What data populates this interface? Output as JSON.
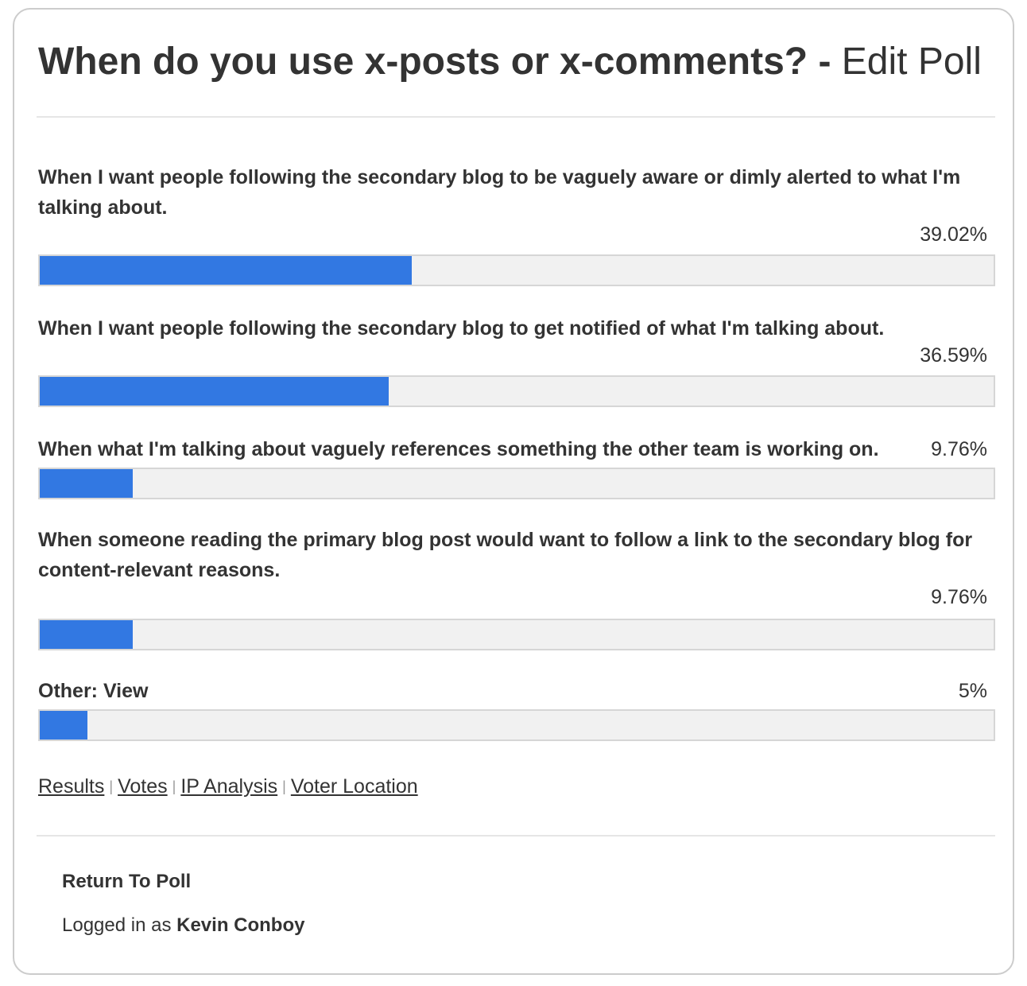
{
  "poll": {
    "question": "When do you use x-posts or x-comments?",
    "title_separator": " - ",
    "edit_label": "Edit Poll"
  },
  "answers": [
    {
      "text": "When I want people following the secondary blog to be vaguely aware or dimly alerted to what I'm talking about.",
      "percent_label": "39.02%",
      "percent": 39.02
    },
    {
      "text": "When I want people following the secondary blog to get notified of what I'm talking about.",
      "percent_label": "36.59%",
      "percent": 36.59
    },
    {
      "text": "When what I'm talking about vaguely references something the other team is working on.",
      "percent_label": "9.76%",
      "percent": 9.76
    },
    {
      "text": "When someone reading the primary blog post would want to follow a link to the secondary blog for content-relevant reasons.",
      "percent_label": "9.76%",
      "percent": 9.76
    },
    {
      "text": "Other: View",
      "percent_label": "5%",
      "percent": 5
    }
  ],
  "nav_links": {
    "results": "Results",
    "votes": "Votes",
    "ip_analysis": "IP Analysis",
    "voter_location": "Voter Location",
    "separator": "|"
  },
  "footer": {
    "return_label": "Return To Poll",
    "logged_in_prefix": "Logged in as ",
    "user_name": "Kevin Conboy"
  },
  "colors": {
    "bar_fill": "#3278e2",
    "bar_track": "#f1f1f1",
    "text": "#333333"
  }
}
